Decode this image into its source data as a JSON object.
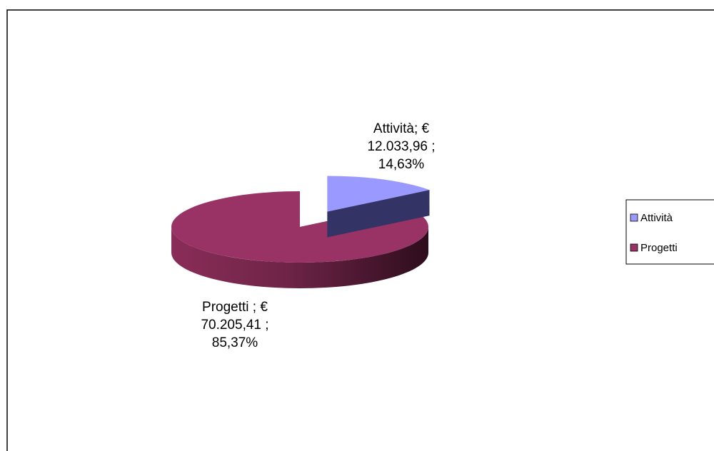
{
  "chart_data": {
    "type": "pie",
    "categories": [
      "Attività",
      "Progetti"
    ],
    "values": [
      12033.96,
      70205.41
    ],
    "value_labels": [
      "Attività; € 12.033,96 ; 14,63%",
      "Progetti ; € 70.205,41 ; 85,37%"
    ],
    "colors": [
      "#9999ff",
      "#993366"
    ],
    "legend": "right"
  }
}
